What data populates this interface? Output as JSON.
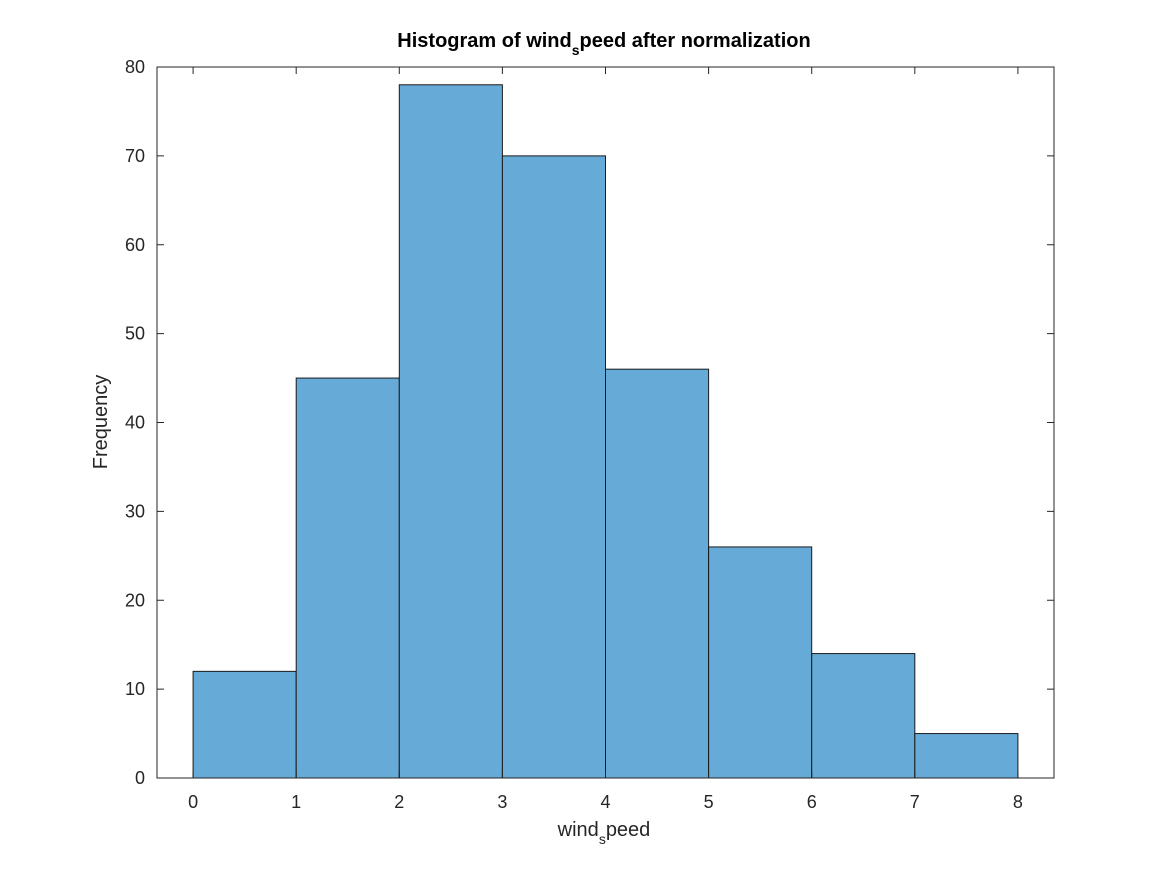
{
  "chart_data": {
    "type": "bar",
    "subtype": "histogram",
    "title": {
      "pre": "Histogram of wind",
      "sub": "s",
      "post": "peed after normalization"
    },
    "xlabel": {
      "pre": "wind",
      "sub": "s",
      "post": "peed"
    },
    "ylabel": "Frequency",
    "bin_edges": [
      0,
      1,
      2,
      3,
      4,
      5,
      6,
      7,
      8
    ],
    "values": [
      12,
      45,
      78,
      70,
      46,
      26,
      14,
      5
    ],
    "xlim": [
      -0.35,
      8.35
    ],
    "ylim": [
      0,
      80
    ],
    "xticks": [
      0,
      1,
      2,
      3,
      4,
      5,
      6,
      7,
      8
    ],
    "yticks": [
      0,
      10,
      20,
      30,
      40,
      50,
      60,
      70,
      80
    ],
    "grid": false,
    "legend": "none",
    "colors": {
      "bar_fill": "#66aad8",
      "bar_edge": "#1a1a1a",
      "axis": "#262626"
    }
  }
}
